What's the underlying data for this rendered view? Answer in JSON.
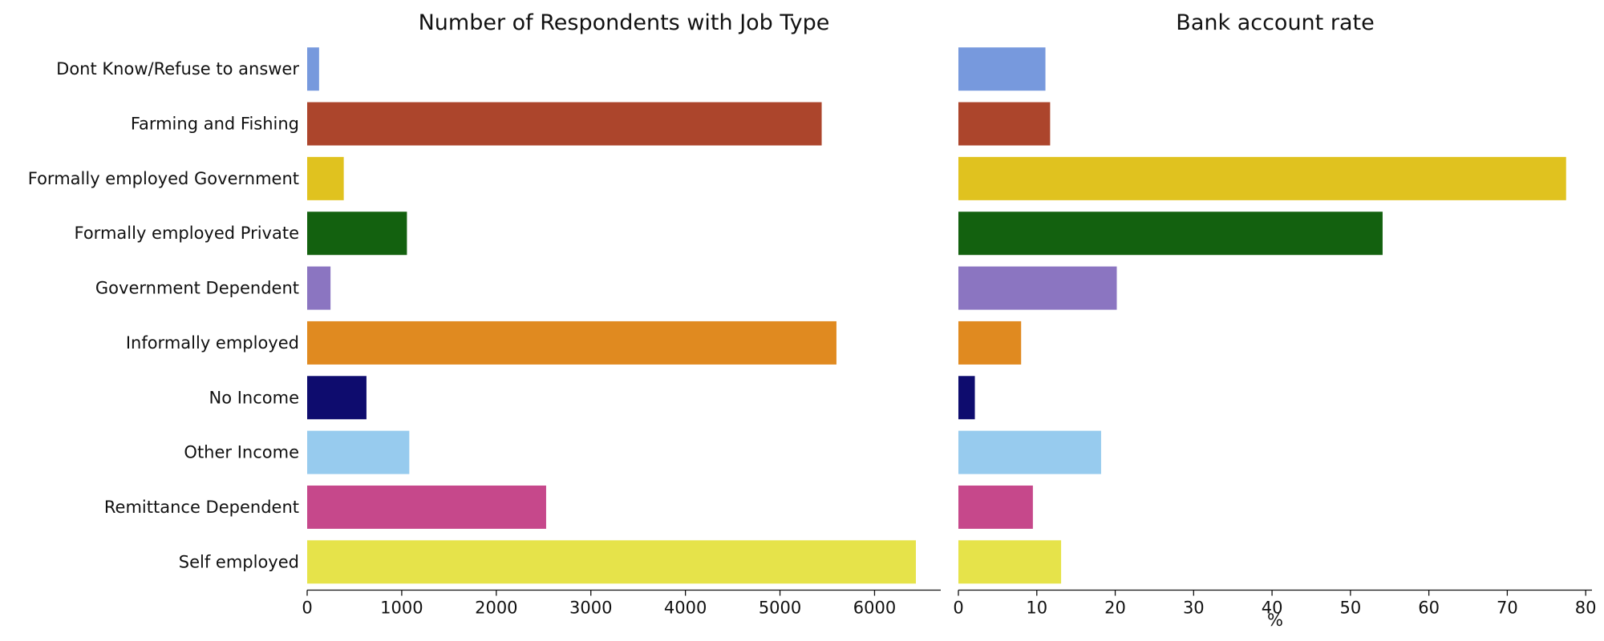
{
  "chart_data": [
    {
      "type": "bar",
      "orientation": "horizontal",
      "title": "Number of Respondents with Job Type",
      "xlabel": "",
      "ylabel": "",
      "xlim": [
        0,
        6700
      ],
      "xticks": [
        0,
        1000,
        2000,
        3000,
        4000,
        5000,
        6000
      ],
      "grid": false,
      "legend": "none",
      "categories": [
        "Dont Know/Refuse to answer",
        "Farming and Fishing",
        "Formally employed Government",
        "Formally employed Private",
        "Government Dependent",
        "Informally employed",
        "No Income",
        "Other Income",
        "Remittance Dependent",
        "Self employed"
      ],
      "values": [
        126,
        5441,
        387,
        1055,
        247,
        5597,
        627,
        1080,
        2527,
        6437
      ],
      "colors": [
        "#7799dd",
        "#ac452c",
        "#e0c21f",
        "#13610f",
        "#8b75c1",
        "#e08a20",
        "#0e0c6e",
        "#97cbee",
        "#c6488b",
        "#e6e34a"
      ]
    },
    {
      "type": "bar",
      "orientation": "horizontal",
      "title": "Bank account rate",
      "xlabel": "%",
      "ylabel": "",
      "xlim": [
        0,
        80.8
      ],
      "xticks": [
        0,
        10,
        20,
        30,
        40,
        50,
        60,
        70,
        80
      ],
      "grid": false,
      "legend": "none",
      "categories": [
        "Dont Know/Refuse to answer",
        "Farming and Fishing",
        "Formally employed Government",
        "Formally employed Private",
        "Government Dependent",
        "Informally employed",
        "No Income",
        "Other Income",
        "Remittance Dependent",
        "Self employed"
      ],
      "values": [
        11.1,
        11.7,
        77.5,
        54.1,
        20.2,
        8.0,
        2.1,
        18.2,
        9.5,
        13.1
      ],
      "colors": [
        "#7799dd",
        "#ac452c",
        "#e0c21f",
        "#13610f",
        "#8b75c1",
        "#e08a20",
        "#0e0c6e",
        "#97cbee",
        "#c6488b",
        "#e6e34a"
      ]
    }
  ]
}
